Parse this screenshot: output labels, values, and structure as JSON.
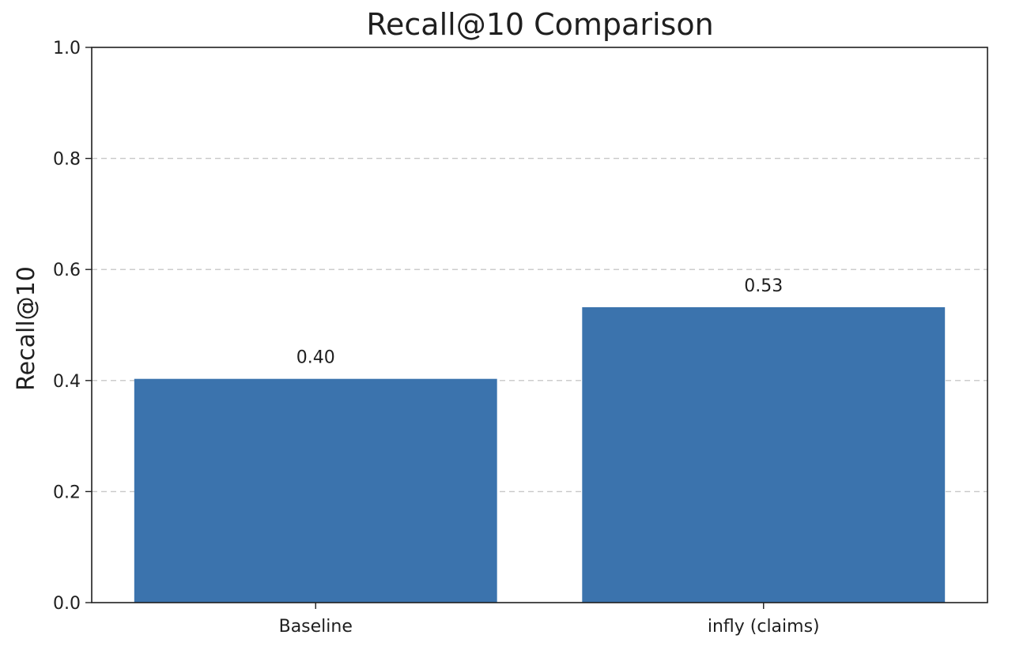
{
  "chart_data": {
    "type": "bar",
    "title": "Recall@10 Comparison",
    "xlabel": "",
    "ylabel": "Recall@10",
    "categories": [
      "Baseline",
      "infly (claims)"
    ],
    "values": [
      0.403,
      0.532
    ],
    "value_labels": [
      "0.40",
      "0.53"
    ],
    "ylim": [
      0,
      1.0
    ],
    "yticks": [
      "0.0",
      "0.2",
      "0.4",
      "0.6",
      "0.8",
      "1.0"
    ],
    "grid": true,
    "grid_style": "dashed horizontal",
    "bar_color": "#3b73ad",
    "legend": false
  }
}
